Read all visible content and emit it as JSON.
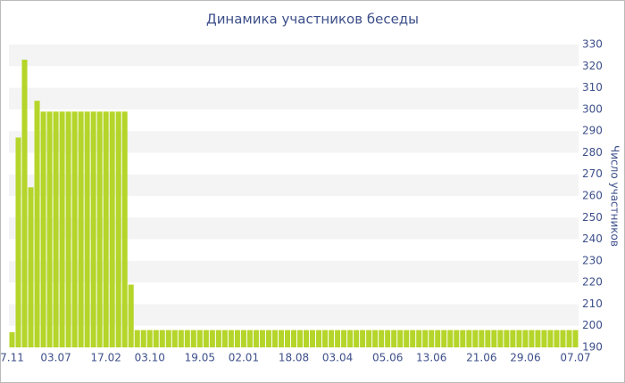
{
  "chart_data": {
    "type": "bar",
    "title": "Динамика участников беседы",
    "y_label": "Число участников",
    "categories": [
      "7.11",
      null,
      null,
      null,
      null,
      null,
      null,
      "03.07",
      null,
      null,
      null,
      null,
      null,
      null,
      null,
      "17.02",
      null,
      null,
      null,
      null,
      null,
      null,
      "03.10",
      null,
      null,
      null,
      null,
      null,
      null,
      null,
      "19.05",
      null,
      null,
      null,
      null,
      null,
      null,
      "02.01",
      null,
      null,
      null,
      null,
      null,
      null,
      null,
      "18.08",
      null,
      null,
      null,
      null,
      null,
      null,
      "03.04",
      null,
      null,
      null,
      null,
      null,
      null,
      null,
      "05.06",
      null,
      null,
      null,
      null,
      null,
      null,
      "13.06",
      null,
      null,
      null,
      null,
      null,
      null,
      null,
      "21.06",
      null,
      null,
      null,
      null,
      null,
      null,
      "29.06",
      null,
      null,
      null,
      null,
      null,
      null,
      null,
      "07.07"
    ],
    "values": [
      197,
      287,
      323,
      264,
      304,
      299,
      299,
      299,
      299,
      299,
      299,
      299,
      299,
      299,
      299,
      299,
      299,
      299,
      299,
      219,
      198,
      198,
      198,
      198,
      198,
      198,
      198,
      198,
      198,
      198,
      198,
      198,
      198,
      198,
      198,
      198,
      198,
      198,
      198,
      198,
      198,
      198,
      198,
      198,
      198,
      198,
      198,
      198,
      198,
      198,
      198,
      198,
      198,
      198,
      198,
      198,
      198,
      198,
      198,
      198,
      198,
      198,
      198,
      198,
      198,
      198,
      198,
      198,
      198,
      198,
      198,
      198,
      198,
      198,
      198,
      198,
      198,
      198,
      198,
      198,
      198,
      198,
      198,
      198,
      198,
      198,
      198,
      198,
      198,
      198,
      198
    ],
    "color": "#b5d52a",
    "ylim": [
      190,
      330
    ],
    "yticks": [
      190,
      200,
      210,
      220,
      230,
      240,
      250,
      260,
      270,
      280,
      290,
      300,
      310,
      320,
      330
    ],
    "grid": true
  }
}
